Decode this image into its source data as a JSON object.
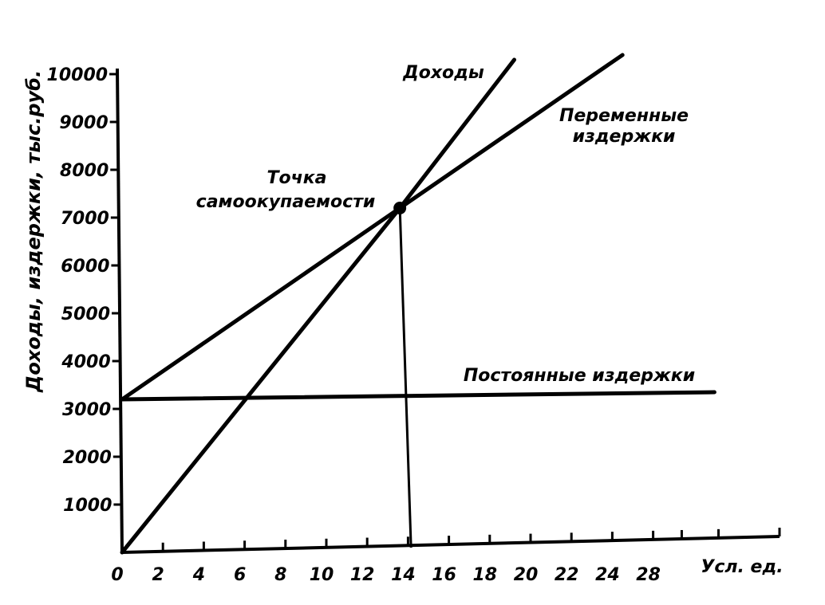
{
  "chart_data": {
    "type": "line",
    "ylabel": "Доходы, издержки, тыс.руб.",
    "xlabel": "Усл. ед.",
    "x_ticks": [
      "0",
      "2",
      "4",
      "6",
      "8",
      "10",
      "12",
      "14",
      "16",
      "18",
      "20",
      "22",
      "24",
      "28"
    ],
    "y_ticks": [
      1000,
      2000,
      3000,
      4000,
      5000,
      6000,
      7000,
      8000,
      9000,
      10000
    ],
    "ylim": [
      0,
      10000
    ],
    "series": [
      {
        "name": "Доходы",
        "points": [
          [
            0,
            0
          ],
          [
            13.6,
            7200
          ],
          [
            19.2,
            10300
          ]
        ]
      },
      {
        "name": "Переменные издержки",
        "points": [
          [
            0,
            3200
          ],
          [
            13.6,
            7200
          ],
          [
            24.5,
            10400
          ]
        ]
      },
      {
        "name": "Постоянные издержки",
        "points": [
          [
            0,
            3200
          ],
          [
            29,
            3350
          ]
        ]
      }
    ],
    "marker": {
      "label": "Точка самоокупаемости",
      "x": 13.6,
      "y": 7200
    },
    "annotations": {
      "income": "Доходы",
      "variable_1": "Переменные",
      "variable_2": "издержки",
      "fixed": "Постоянные издержки",
      "point_1": "Точка",
      "point_2": "самоокупаемости"
    }
  }
}
